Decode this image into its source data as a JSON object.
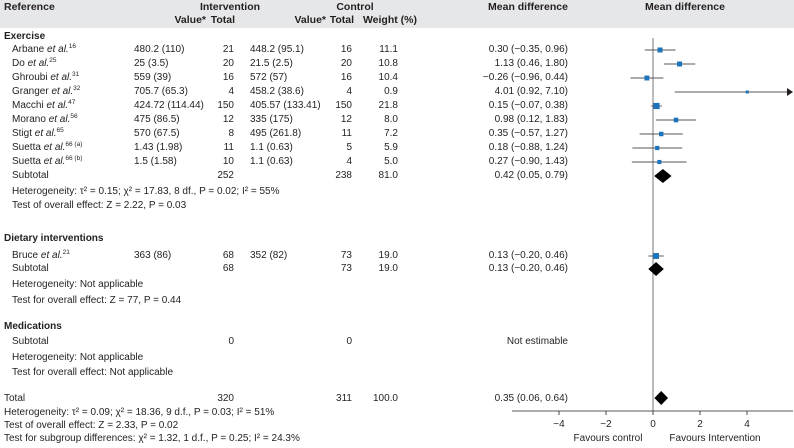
{
  "headers": {
    "reference": "Reference",
    "intervention": "Intervention",
    "control": "Control",
    "mean_difference": "Mean difference",
    "plot_title": "Mean difference",
    "value": "Value*",
    "total": "Total",
    "weight": "Weight (%)"
  },
  "groups": [
    {
      "title": "Exercise",
      "studies": [
        {
          "author": "Arbane",
          "etal": "et al.",
          "ref": "16",
          "i_value": "480.2 (110)",
          "i_total": "21",
          "c_value": "448.2 (95.1)",
          "c_total": "16",
          "weight": "11.1",
          "md": "0.30 (−0.35, 0.96)"
        },
        {
          "author": "Do",
          "etal": "et al.",
          "ref": "25",
          "i_value": "25 (3.5)",
          "i_total": "20",
          "c_value": "21.5 (2.5)",
          "c_total": "20",
          "weight": "10.8",
          "md": "1.13 (0.46, 1.80)"
        },
        {
          "author": "Ghroubi",
          "etal": "et al.",
          "ref": "31",
          "i_value": "559 (39)",
          "i_total": "16",
          "c_value": "572 (57)",
          "c_total": "16",
          "weight": "10.4",
          "md": "−0.26 (−0.96, 0.44)"
        },
        {
          "author": "Granger",
          "etal": "et al.",
          "ref": "32",
          "i_value": "705.7 (65.3)",
          "i_total": "4",
          "c_value": "458.2 (38.6)",
          "c_total": "4",
          "weight": "0.9",
          "md": "4.01 (0.92, 7.10)"
        },
        {
          "author": "Macchi",
          "etal": "et al.",
          "ref": "47",
          "i_value": "424.72 (114.44)",
          "i_total": "150",
          "c_value": "405.57 (133.41)",
          "c_total": "150",
          "weight": "21.8",
          "md": "0.15 (−0.07, 0.38)"
        },
        {
          "author": "Morano",
          "etal": "et al.",
          "ref": "56",
          "i_value": "475 (86.5)",
          "i_total": "12",
          "c_value": "335 (175)",
          "c_total": "12",
          "weight": "8.0",
          "md": "0.98 (0.12, 1.83)"
        },
        {
          "author": "Stigt",
          "etal": "et al.",
          "ref": "65",
          "i_value": "570 (67.5)",
          "i_total": "8",
          "c_value": "495 (261.8)",
          "c_total": "11",
          "weight": "7.2",
          "md": "0.35 (−0.57, 1.27)"
        },
        {
          "author": "Suetta",
          "etal": "et al.",
          "ref": "66 (a)",
          "i_value": "1.43 (1.98)",
          "i_total": "11",
          "c_value": "1.1 (0.63)",
          "c_total": "5",
          "weight": "5.9",
          "md": "0.18 (−0.88, 1.24)"
        },
        {
          "author": "Suetta",
          "etal": "et al.",
          "ref": "66 (b)",
          "i_value": "1.5 (1.58)",
          "i_total": "10",
          "c_value": "1.1 (0.63)",
          "c_total": "4",
          "weight": "5.0",
          "md": "0.27 (−0.90, 1.43)"
        }
      ],
      "subtotal": {
        "label": "Subtotal",
        "i_total": "252",
        "c_total": "238",
        "weight": "81.0",
        "md": "0.42 (0.05, 0.79)"
      },
      "heterogeneity": "Heterogeneity: τ² = 0.15; χ² = 17.83, 8 df., P = 0.02; I² = 55%",
      "overall": "Test of overall effect: Z = 2.22, P = 0.03"
    },
    {
      "title": "Dietary interventions",
      "studies": [
        {
          "author": "Bruce",
          "etal": "et al.",
          "ref": "21",
          "i_value": "363 (86)",
          "i_total": "68",
          "c_value": "352 (82)",
          "c_total": "73",
          "weight": "19.0",
          "md": "0.13 (−0.20, 0.46)"
        }
      ],
      "subtotal": {
        "label": "Subtotal",
        "i_total": "68",
        "c_total": "73",
        "weight": "19.0",
        "md": "0.13 (−0.20, 0.46)"
      },
      "heterogeneity": "Heterogeneity: Not applicable",
      "overall": "Test for overall effect: Z = 77, P = 0.44"
    },
    {
      "title": "Medications",
      "studies": [],
      "subtotal": {
        "label": "Subtotal",
        "i_total": "0",
        "c_total": "0",
        "weight": "",
        "md": "Not estimable"
      },
      "heterogeneity": "Heterogeneity: Not applicable",
      "overall": "Test for overall effect: Not applicable"
    }
  ],
  "total": {
    "label": "Total",
    "i_total": "320",
    "c_total": "311",
    "weight": "100.0",
    "md": "0.35 (0.06, 0.64)"
  },
  "footer": {
    "heterogeneity": "Heterogeneity: τ² = 0.09; χ² = 18.36, 9 d.f., P = 0.03; I² = 51%",
    "overall": "Test of overall effect: Z = 2.33, P = 0.02",
    "subgroup": "Test for subgroup differences: χ² = 1.32, 1 d.f., P = 0.25; I² = 24.3%"
  },
  "axis": {
    "ticks": [
      "−4",
      "−2",
      "0",
      "2",
      "4"
    ],
    "favours_left": "Favours control",
    "favours_right": "Favours Intervention"
  },
  "colors": {
    "marker": "#1c75bc",
    "diamond": "#000000",
    "header_band": "#e6e7e8"
  },
  "chart_data": {
    "type": "forest",
    "xlim": [
      -6,
      6
    ],
    "studies": [
      {
        "name": "Arbane et al.",
        "md": 0.3,
        "lo": -0.35,
        "hi": 0.96,
        "weight": 11.1
      },
      {
        "name": "Do et al.",
        "md": 1.13,
        "lo": 0.46,
        "hi": 1.8,
        "weight": 10.8
      },
      {
        "name": "Ghroubi et al.",
        "md": -0.26,
        "lo": -0.96,
        "hi": 0.44,
        "weight": 10.4
      },
      {
        "name": "Granger et al.",
        "md": 4.01,
        "lo": 0.92,
        "hi": 7.1,
        "weight": 0.9
      },
      {
        "name": "Macchi et al.",
        "md": 0.15,
        "lo": -0.07,
        "hi": 0.38,
        "weight": 21.8
      },
      {
        "name": "Morano et al.",
        "md": 0.98,
        "lo": 0.12,
        "hi": 1.83,
        "weight": 8.0
      },
      {
        "name": "Stigt et al.",
        "md": 0.35,
        "lo": -0.57,
        "hi": 1.27,
        "weight": 7.2
      },
      {
        "name": "Suetta et al. (a)",
        "md": 0.18,
        "lo": -0.88,
        "hi": 1.24,
        "weight": 5.9
      },
      {
        "name": "Suetta et al. (b)",
        "md": 0.27,
        "lo": -0.9,
        "hi": 1.43,
        "weight": 5.0
      },
      {
        "name": "Exercise subtotal",
        "md": 0.42,
        "lo": 0.05,
        "hi": 0.79,
        "diamond": true
      },
      {
        "name": "Bruce et al.",
        "md": 0.13,
        "lo": -0.2,
        "hi": 0.46,
        "weight": 19.0
      },
      {
        "name": "Dietary interventions subtotal",
        "md": 0.13,
        "lo": -0.2,
        "hi": 0.46,
        "diamond": true
      },
      {
        "name": "Total",
        "md": 0.35,
        "lo": 0.06,
        "hi": 0.64,
        "diamond": true
      }
    ]
  }
}
